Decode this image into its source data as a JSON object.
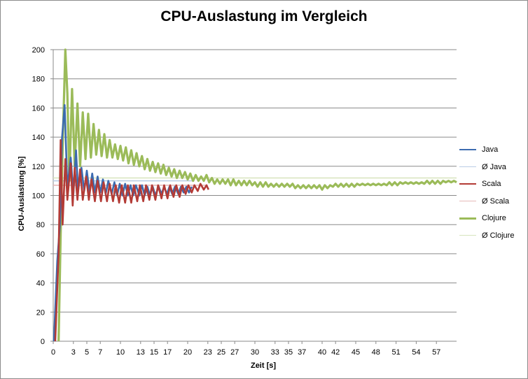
{
  "chart_data": {
    "type": "line",
    "title": "CPU-Auslastung im Vergleich",
    "xlabel": "Zeit [s]",
    "ylabel": "CPU-Auslastung [%]",
    "xlim": [
      0,
      60
    ],
    "ylim": [
      0,
      200
    ],
    "x_ticks": [
      0,
      3,
      5,
      7,
      10,
      13,
      15,
      17,
      20,
      23,
      25,
      27,
      30,
      33,
      35,
      37,
      40,
      42,
      45,
      48,
      51,
      54,
      57
    ],
    "y_ticks": [
      0,
      20,
      40,
      60,
      80,
      100,
      120,
      140,
      160,
      180,
      200
    ],
    "grid": "horizontal",
    "legend_position": "right",
    "series": [
      {
        "name": "Java",
        "color": "#3c6bb0",
        "width": 2.6,
        "points": [
          [
            0.1,
            0
          ],
          [
            0.6,
            55
          ],
          [
            1.0,
            80
          ],
          [
            1.3,
            139
          ],
          [
            1.7,
            162
          ],
          [
            2.1,
            105
          ],
          [
            2.6,
            126
          ],
          [
            3.0,
            101
          ],
          [
            3.4,
            131
          ],
          [
            3.7,
            103
          ],
          [
            4.2,
            119
          ],
          [
            4.6,
            103
          ],
          [
            5.0,
            117
          ],
          [
            5.4,
            102
          ],
          [
            5.8,
            115
          ],
          [
            6.2,
            102
          ],
          [
            6.6,
            113
          ],
          [
            7.0,
            102
          ],
          [
            7.4,
            111
          ],
          [
            7.8,
            101
          ],
          [
            8.2,
            110
          ],
          [
            8.7,
            101
          ],
          [
            9.1,
            109
          ],
          [
            9.5,
            100
          ],
          [
            9.9,
            108
          ],
          [
            10.3,
            100
          ],
          [
            10.7,
            108
          ],
          [
            11.1,
            100
          ],
          [
            11.5,
            107
          ],
          [
            11.9,
            100
          ],
          [
            12.3,
            107
          ],
          [
            12.8,
            100
          ],
          [
            13.2,
            107
          ],
          [
            13.6,
            100
          ],
          [
            14.0,
            106
          ],
          [
            14.4,
            100
          ],
          [
            14.8,
            106
          ],
          [
            15.2,
            100
          ],
          [
            15.7,
            106
          ],
          [
            16.1,
            101
          ],
          [
            16.5,
            106
          ],
          [
            16.9,
            101
          ],
          [
            17.3,
            106
          ],
          [
            17.7,
            101
          ],
          [
            18.1,
            106
          ],
          [
            18.6,
            101
          ],
          [
            19.0,
            106
          ],
          [
            19.4,
            102
          ],
          [
            19.8,
            106
          ],
          [
            20.2,
            102
          ],
          [
            20.6,
            106
          ]
        ]
      },
      {
        "name": "Ø Java",
        "color": "#b9cde5",
        "width": 1.6,
        "points": [
          [
            0,
            110
          ],
          [
            21,
            110
          ]
        ]
      },
      {
        "name": "Scala",
        "color": "#b33b36",
        "width": 2.6,
        "points": [
          [
            0.3,
            0
          ],
          [
            0.8,
            60
          ],
          [
            1.1,
            138
          ],
          [
            1.4,
            80
          ],
          [
            1.8,
            125
          ],
          [
            2.1,
            97
          ],
          [
            2.6,
            122
          ],
          [
            2.9,
            93
          ],
          [
            3.2,
            119
          ],
          [
            3.6,
            97
          ],
          [
            4.0,
            118
          ],
          [
            4.4,
            97
          ],
          [
            4.9,
            113
          ],
          [
            5.3,
            97
          ],
          [
            5.7,
            111
          ],
          [
            6.2,
            96
          ],
          [
            6.6,
            110
          ],
          [
            7.1,
            96
          ],
          [
            7.5,
            109
          ],
          [
            8.0,
            96
          ],
          [
            8.4,
            108
          ],
          [
            8.9,
            96
          ],
          [
            9.3,
            107
          ],
          [
            9.8,
            95
          ],
          [
            10.2,
            107
          ],
          [
            10.7,
            95
          ],
          [
            11.1,
            107
          ],
          [
            11.6,
            95
          ],
          [
            12.0,
            107
          ],
          [
            12.5,
            96
          ],
          [
            12.9,
            107
          ],
          [
            13.4,
            96
          ],
          [
            13.8,
            107
          ],
          [
            14.3,
            97
          ],
          [
            14.7,
            107
          ],
          [
            15.2,
            97
          ],
          [
            15.6,
            107
          ],
          [
            16.1,
            98
          ],
          [
            16.5,
            107
          ],
          [
            17.0,
            98
          ],
          [
            17.4,
            107
          ],
          [
            17.9,
            99
          ],
          [
            18.3,
            107
          ],
          [
            18.8,
            99
          ],
          [
            19.2,
            107
          ],
          [
            19.7,
            101
          ],
          [
            20.1,
            107
          ],
          [
            20.6,
            102
          ],
          [
            21.0,
            107
          ],
          [
            21.5,
            103
          ],
          [
            21.9,
            108
          ],
          [
            22.4,
            104
          ],
          [
            22.8,
            107
          ],
          [
            23.1,
            104
          ]
        ]
      },
      {
        "name": "Ø Scala",
        "color": "#e6b9b8",
        "width": 1.6,
        "points": [
          [
            0,
            107
          ],
          [
            23,
            107
          ]
        ]
      },
      {
        "name": "Clojure",
        "color": "#9bbb59",
        "width": 3.2,
        "points": [
          [
            0.8,
            0
          ],
          [
            1.2,
            95
          ],
          [
            1.5,
            150
          ],
          [
            1.8,
            200
          ],
          [
            2.1,
            170
          ],
          [
            2.4,
            110
          ],
          [
            2.8,
            173
          ],
          [
            3.2,
            120
          ],
          [
            3.6,
            163
          ],
          [
            4.0,
            120
          ],
          [
            4.4,
            157
          ],
          [
            4.8,
            125
          ],
          [
            5.2,
            156
          ],
          [
            5.6,
            126
          ],
          [
            6.0,
            149
          ],
          [
            6.4,
            128
          ],
          [
            6.8,
            145
          ],
          [
            7.2,
            127
          ],
          [
            7.6,
            142
          ],
          [
            8.0,
            126
          ],
          [
            8.4,
            138
          ],
          [
            8.8,
            126
          ],
          [
            9.2,
            135
          ],
          [
            9.6,
            125
          ],
          [
            10.0,
            134
          ],
          [
            10.4,
            124
          ],
          [
            10.8,
            133
          ],
          [
            11.2,
            122
          ],
          [
            11.6,
            131
          ],
          [
            12.0,
            121
          ],
          [
            12.4,
            129
          ],
          [
            12.8,
            120
          ],
          [
            13.2,
            127
          ],
          [
            13.6,
            118
          ],
          [
            14.0,
            125
          ],
          [
            14.4,
            117
          ],
          [
            14.8,
            123
          ],
          [
            15.2,
            116
          ],
          [
            15.6,
            122
          ],
          [
            16.0,
            115
          ],
          [
            16.4,
            121
          ],
          [
            16.8,
            114
          ],
          [
            17.2,
            119
          ],
          [
            17.6,
            113
          ],
          [
            18.0,
            118
          ],
          [
            18.4,
            112
          ],
          [
            18.8,
            117
          ],
          [
            19.2,
            112
          ],
          [
            19.6,
            116
          ],
          [
            20.0,
            111
          ],
          [
            20.4,
            115
          ],
          [
            20.8,
            110
          ],
          [
            21.2,
            114
          ],
          [
            21.6,
            110
          ],
          [
            22.0,
            113
          ],
          [
            22.4,
            110
          ],
          [
            22.8,
            114
          ],
          [
            23.2,
            109
          ],
          [
            23.6,
            112
          ],
          [
            24.0,
            108
          ],
          [
            24.4,
            111
          ],
          [
            24.8,
            108
          ],
          [
            25.2,
            111
          ],
          [
            25.6,
            108
          ],
          [
            26.0,
            111
          ],
          [
            26.4,
            107
          ],
          [
            26.8,
            111
          ],
          [
            27.2,
            107
          ],
          [
            27.6,
            110
          ],
          [
            28.0,
            107
          ],
          [
            28.4,
            110
          ],
          [
            28.8,
            107
          ],
          [
            29.2,
            110
          ],
          [
            29.6,
            107
          ],
          [
            30.0,
            109
          ],
          [
            30.4,
            106
          ],
          [
            30.8,
            109
          ],
          [
            31.2,
            106
          ],
          [
            31.6,
            109
          ],
          [
            32.0,
            106
          ],
          [
            32.4,
            108
          ],
          [
            32.8,
            106
          ],
          [
            33.2,
            108
          ],
          [
            33.6,
            106
          ],
          [
            34.0,
            108
          ],
          [
            34.4,
            106
          ],
          [
            34.8,
            108
          ],
          [
            35.2,
            106
          ],
          [
            35.6,
            108
          ],
          [
            36.0,
            105
          ],
          [
            36.4,
            107
          ],
          [
            36.8,
            105
          ],
          [
            37.2,
            107
          ],
          [
            37.6,
            105
          ],
          [
            38.0,
            107
          ],
          [
            38.4,
            105
          ],
          [
            38.8,
            107
          ],
          [
            39.2,
            105
          ],
          [
            39.6,
            107
          ],
          [
            40.0,
            104
          ],
          [
            40.4,
            107
          ],
          [
            40.8,
            105
          ],
          [
            41.2,
            107
          ],
          [
            41.6,
            106
          ],
          [
            42.0,
            108
          ],
          [
            42.4,
            106
          ],
          [
            42.8,
            108
          ],
          [
            43.2,
            106
          ],
          [
            43.6,
            108
          ],
          [
            44.0,
            106
          ],
          [
            44.4,
            108
          ],
          [
            44.8,
            106
          ],
          [
            45.2,
            108
          ],
          [
            45.6,
            107
          ],
          [
            46.0,
            108
          ],
          [
            46.4,
            107
          ],
          [
            46.8,
            108
          ],
          [
            47.2,
            107
          ],
          [
            47.6,
            108
          ],
          [
            48.0,
            107
          ],
          [
            48.4,
            108
          ],
          [
            48.8,
            107
          ],
          [
            49.2,
            108
          ],
          [
            49.6,
            107
          ],
          [
            50.0,
            109
          ],
          [
            50.4,
            107
          ],
          [
            50.8,
            109
          ],
          [
            51.2,
            107
          ],
          [
            51.6,
            109
          ],
          [
            52.0,
            108
          ],
          [
            52.4,
            109
          ],
          [
            52.8,
            108
          ],
          [
            53.2,
            109
          ],
          [
            53.6,
            108
          ],
          [
            54.0,
            109
          ],
          [
            54.4,
            108
          ],
          [
            54.8,
            109
          ],
          [
            55.2,
            108
          ],
          [
            55.6,
            110
          ],
          [
            56.0,
            108
          ],
          [
            56.4,
            110
          ],
          [
            56.8,
            108
          ],
          [
            57.2,
            110
          ],
          [
            57.6,
            108
          ],
          [
            58.0,
            110
          ],
          [
            58.4,
            109
          ],
          [
            58.8,
            110
          ],
          [
            59.2,
            109
          ],
          [
            59.6,
            110
          ],
          [
            60.0,
            109
          ]
        ]
      },
      {
        "name": "Ø Clojure",
        "color": "#d7e4bd",
        "width": 1.6,
        "points": [
          [
            0,
            112
          ],
          [
            60,
            112
          ]
        ]
      }
    ]
  }
}
